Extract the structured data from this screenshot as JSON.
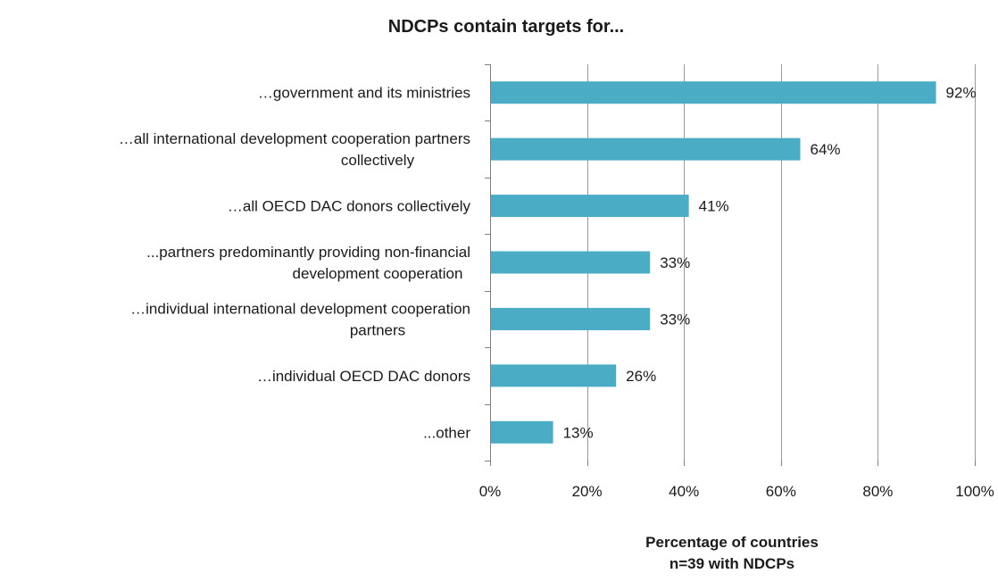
{
  "chart_data": {
    "type": "bar",
    "orientation": "horizontal",
    "title": "NDCPs contain targets for...",
    "categories": [
      [
        "…government and its ministries"
      ],
      [
        "…all international development cooperation partners",
        "collectively"
      ],
      [
        "…all OECD DAC donors collectively"
      ],
      [
        "...partners predominantly providing non-financial",
        "development cooperation"
      ],
      [
        "…individual international development cooperation",
        "partners"
      ],
      [
        "…individual OECD DAC donors"
      ],
      [
        "...other"
      ]
    ],
    "values": [
      92,
      64,
      41,
      33,
      33,
      26,
      13
    ],
    "value_labels": [
      "92%",
      "64%",
      "41%",
      "33%",
      "33%",
      "26%",
      "13%"
    ],
    "xlim": [
      0,
      100
    ],
    "xticks": [
      0,
      20,
      40,
      60,
      80,
      100
    ],
    "xtick_labels": [
      "0%",
      "20%",
      "40%",
      "60%",
      "80%",
      "100%"
    ],
    "xlabel": [
      "Percentage of countries",
      "n=39 with NDCPs"
    ],
    "ylabel": "",
    "grid": true,
    "legend": "none",
    "bar_color": "#4BACC6"
  }
}
